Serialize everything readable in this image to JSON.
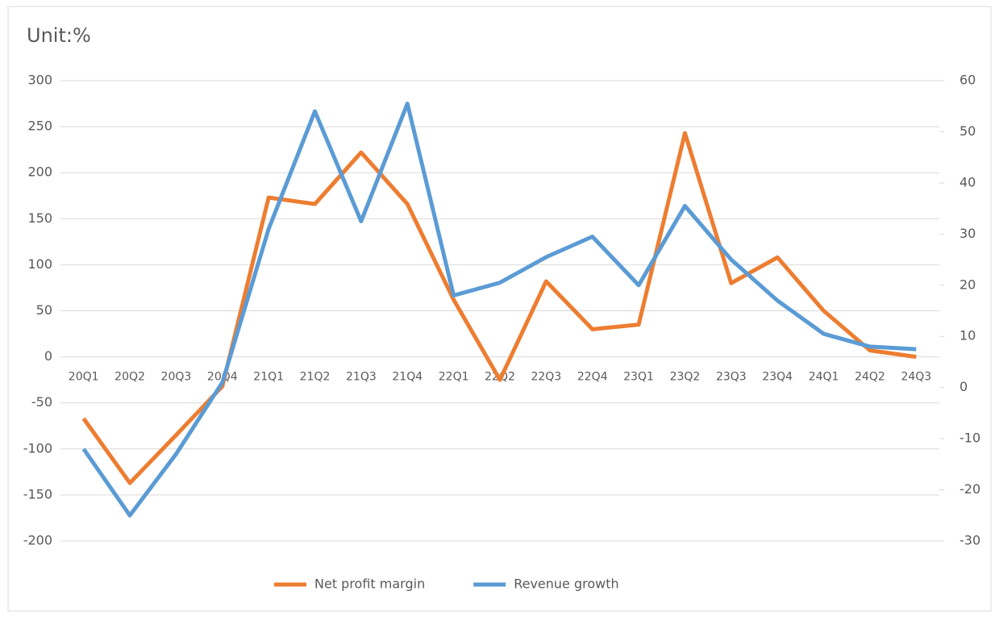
{
  "chart_data": {
    "type": "line",
    "title": "Unit:%",
    "categories": [
      "20Q1",
      "20Q2",
      "20Q3",
      "20Q4",
      "21Q1",
      "21Q2",
      "21Q3",
      "21Q4",
      "22Q1",
      "22Q2",
      "22Q3",
      "22Q4",
      "23Q1",
      "23Q2",
      "23Q3",
      "23Q4",
      "24Q1",
      "24Q2",
      "24Q3"
    ],
    "series": [
      {
        "name": "Net profit margin",
        "color": "#ed7d31",
        "values": [
          -67,
          -137,
          -85,
          -32,
          173,
          166,
          222,
          166,
          62,
          -25,
          82,
          30,
          35,
          243,
          80,
          108,
          50,
          7,
          0
        ]
      },
      {
        "name": "Revenue growth",
        "color": "#5b9bd5",
        "axis": "y2",
        "values": [
          -12,
          -25,
          -13,
          1,
          31,
          54,
          32.5,
          55.5,
          18,
          20.5,
          25.5,
          29.5,
          20,
          35.5,
          25,
          17,
          10.5,
          8,
          7.5
        ]
      }
    ],
    "ylim": [
      -200,
      300
    ],
    "yticks": [
      -200,
      -150,
      -100,
      -50,
      0,
      50,
      100,
      150,
      200,
      250,
      300
    ],
    "y2lim": [
      -30,
      60
    ],
    "y2ticks": [
      -30,
      -20,
      -10,
      0,
      10,
      20,
      30,
      40,
      50,
      60
    ],
    "grid": true,
    "legend": "bottom"
  }
}
